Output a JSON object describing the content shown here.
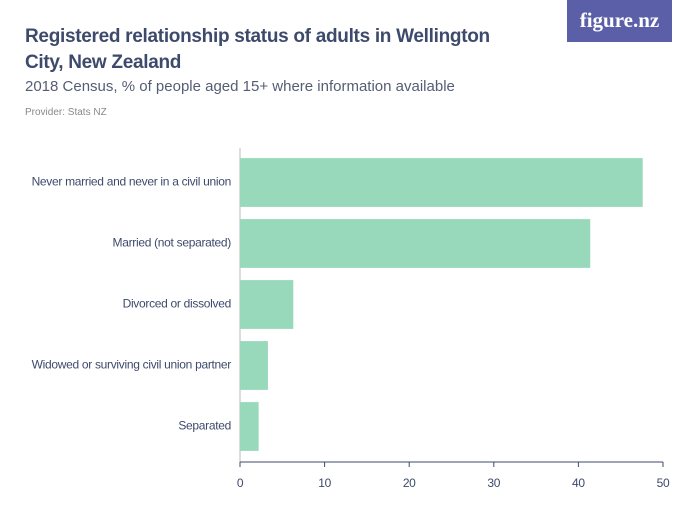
{
  "chart_data": {
    "type": "hbar",
    "title": "Registered relationship status of adults in Wellington City, New Zealand",
    "subtitle": "2018 Census, % of people aged 15+ where information available",
    "provider": "Provider: Stats NZ",
    "logo": "figure.nz",
    "categories": [
      "Never married and never in a civil union",
      "Married (not separated)",
      "Divorced or dissolved",
      "Widowed or surviving civil union partner",
      "Separated"
    ],
    "values": [
      47.6,
      41.4,
      6.3,
      3.3,
      2.2
    ],
    "color": "#98d8bb",
    "xlim": [
      0,
      50
    ],
    "xticks": [
      0,
      10,
      20,
      30,
      40,
      50
    ]
  }
}
